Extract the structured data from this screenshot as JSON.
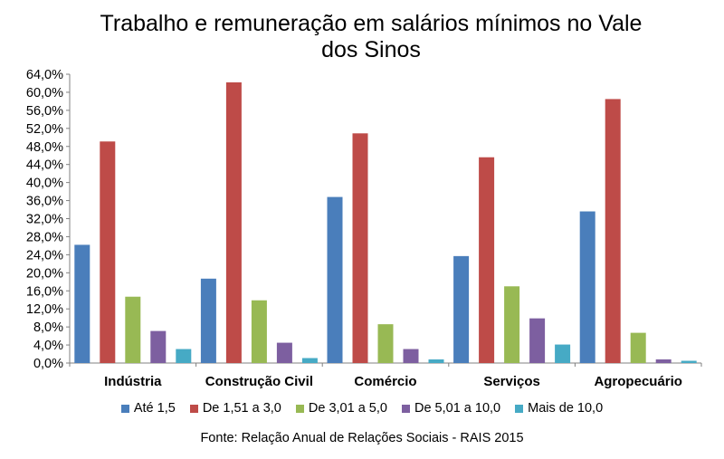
{
  "chart_data": {
    "type": "bar",
    "title": "Trabalho e remuneração em salários mínimos no Vale dos Sinos",
    "title_lines": [
      "Trabalho e remuneração em salários mínimos no Vale",
      "dos Sinos"
    ],
    "source": "Fonte: Relação Anual de Relações Sociais - RAIS 2015",
    "categories": [
      "Indústria",
      "Construção Civil",
      "Comércio",
      "Serviços",
      "Agropecuário"
    ],
    "ylim": [
      0,
      64
    ],
    "yticks": [
      "0,0%",
      "4,0%",
      "8,0%",
      "12,0%",
      "16,0%",
      "20,0%",
      "24,0%",
      "28,0%",
      "32,0%",
      "36,0%",
      "40,0%",
      "44,0%",
      "48,0%",
      "52,0%",
      "56,0%",
      "60,0%",
      "64,0%"
    ],
    "grid": false,
    "legend_position": "bottom",
    "series": [
      {
        "name": "Até 1,5",
        "color": "#4a7ebb",
        "values": [
          26.2,
          18.7,
          36.8,
          23.7,
          33.6
        ]
      },
      {
        "name": "De 1,51 a 3,0",
        "color": "#be4b48",
        "values": [
          49.1,
          62.2,
          50.9,
          45.6,
          58.5
        ]
      },
      {
        "name": "De 3,01 a 5,0",
        "color": "#98b954",
        "values": [
          14.7,
          13.9,
          8.6,
          17.0,
          6.7
        ]
      },
      {
        "name": "De 5,01 a 10,0",
        "color": "#7d5fa0",
        "values": [
          7.1,
          4.5,
          3.1,
          9.9,
          0.8
        ]
      },
      {
        "name": "Mais de 10,0",
        "color": "#46aac5",
        "values": [
          3.1,
          1.1,
          0.8,
          4.1,
          0.5
        ]
      }
    ]
  }
}
